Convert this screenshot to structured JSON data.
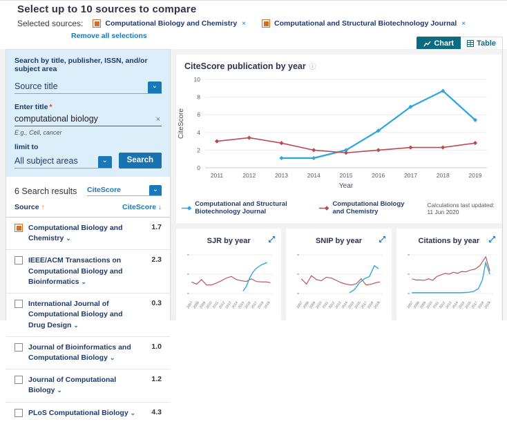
{
  "header": {
    "title": "Select up to 10 sources to compare",
    "selected_sources_label": "Selected sources:",
    "chips": [
      {
        "label": "Computational Biology and Chemistry",
        "close": "×"
      },
      {
        "label": "Computational and Structural Biotechnology Journal",
        "close": "×"
      }
    ],
    "remove_all_label": "Remove all selections"
  },
  "view_toggle": {
    "chart_label": "Chart",
    "table_label": "Table"
  },
  "sidebar": {
    "search_heading": "Search by title, publisher, ISSN, and/or subject area",
    "source_type_value": "Source title",
    "title_field_label": "Enter title",
    "required_mark": "*",
    "title_field_value": "computational biology",
    "clear_icon": "×",
    "title_field_hint": "E.g., Cell, cancer",
    "limit_label": "limit to",
    "subject_value": "All subject areas",
    "search_button_label": "Search",
    "results_count": "6 Search results",
    "sort_value": "CiteScore",
    "col_source": "Source",
    "col_source_arrow": "↑",
    "col_citescore": "CiteScore",
    "col_citescore_arrow": "↓",
    "results": [
      {
        "label": "Computational Biology and Chemistry",
        "value": "1.7",
        "checked": true
      },
      {
        "label": "IEEE/ACM Transactions on Computational Biology and Bioinformatics",
        "value": "2.3",
        "checked": false
      },
      {
        "label": "International Journal of Computational Biology and Drug Design",
        "value": "0.3",
        "checked": false
      },
      {
        "label": "Journal of Bioinformatics and Computational Biology",
        "value": "1.0",
        "checked": false
      },
      {
        "label": "Journal of Computational Biology",
        "value": "1.2",
        "checked": false
      },
      {
        "label": "PLoS Computational Biology",
        "value": "4.3",
        "checked": false
      }
    ]
  },
  "main": {
    "chart_title": "CiteScore publication by year",
    "info_icon": "ⓘ",
    "footnote": "Calculations last updated: 11 Jun 2020"
  },
  "colors": {
    "line_blue": "#2fa8d8",
    "line_red": "#b84a50",
    "link_blue": "#1878b8",
    "teal": "#0d6b80",
    "button_blue": "#1873b0",
    "orange_checkbox": "#d96c1e",
    "panel_blue": "#dceef9",
    "navy_text": "#1f3a68"
  },
  "chart_data": [
    {
      "id": "citescore_by_year",
      "type": "line",
      "title": "CiteScore publication by year",
      "xlabel": "Year",
      "ylabel": "CiteScore",
      "ylim": [
        0,
        10
      ],
      "yticks": [
        0,
        2,
        4,
        6,
        8,
        10
      ],
      "categories": [
        "2011",
        "2012",
        "2013",
        "2014",
        "2015",
        "2016",
        "2017",
        "2018",
        "2019"
      ],
      "grid": true,
      "legend_position": "bottom",
      "series": [
        {
          "name": "Computational and Structural Biotechnology Journal",
          "color": "#2fa8d8",
          "values": [
            null,
            null,
            1.1,
            1.1,
            2.0,
            4.2,
            6.9,
            8.7,
            5.4
          ]
        },
        {
          "name": "Computational Biology and Chemistry",
          "color": "#b84a50",
          "values": [
            3.0,
            3.4,
            2.8,
            2.0,
            1.7,
            2.0,
            2.3,
            2.3,
            2.8
          ]
        }
      ],
      "footnote": "Calculations last updated: 11 Jun 2020"
    },
    {
      "id": "sjr_by_year",
      "type": "line",
      "title": "SJR by year",
      "categories": [
        "2007",
        "2008",
        "2009",
        "2010",
        "2011",
        "2012",
        "2013",
        "2014",
        "2015",
        "2016",
        "2017",
        "2018",
        "2019"
      ],
      "series": [
        {
          "name": "Computational Biology and Chemistry",
          "color": "#b84a50",
          "points": [
            [
              0.02,
              0.3
            ],
            [
              0.08,
              0.24
            ],
            [
              0.14,
              0.36
            ],
            [
              0.2,
              0.22
            ],
            [
              0.26,
              0.22
            ],
            [
              0.32,
              0.27
            ],
            [
              0.38,
              0.33
            ],
            [
              0.44,
              0.4
            ],
            [
              0.5,
              0.44
            ],
            [
              0.56,
              0.36
            ],
            [
              0.62,
              0.33
            ],
            [
              0.68,
              0.31
            ],
            [
              0.74,
              0.38
            ],
            [
              0.8,
              0.31
            ],
            [
              0.86,
              0.3
            ],
            [
              0.92,
              0.3
            ],
            [
              0.97,
              0.28
            ]
          ]
        },
        {
          "name": "Computational and Structural Biotechnology Journal",
          "color": "#2fa8d8",
          "points": [
            [
              0.64,
              0.06
            ],
            [
              0.68,
              0.18
            ],
            [
              0.72,
              0.4
            ],
            [
              0.76,
              0.55
            ],
            [
              0.8,
              0.65
            ],
            [
              0.86,
              0.74
            ],
            [
              0.93,
              0.8
            ]
          ]
        }
      ]
    },
    {
      "id": "snip_by_year",
      "type": "line",
      "title": "SNIP by year",
      "categories": [
        "2007",
        "2008",
        "2009",
        "2010",
        "2011",
        "2012",
        "2013",
        "2014",
        "2015",
        "2016",
        "2017",
        "2018",
        "2019"
      ],
      "series": [
        {
          "name": "Computational Biology and Chemistry",
          "color": "#b84a50",
          "points": [
            [
              0.02,
              0.38
            ],
            [
              0.08,
              0.24
            ],
            [
              0.14,
              0.46
            ],
            [
              0.2,
              0.36
            ],
            [
              0.26,
              0.33
            ],
            [
              0.32,
              0.42
            ],
            [
              0.38,
              0.4
            ],
            [
              0.44,
              0.34
            ],
            [
              0.5,
              0.28
            ],
            [
              0.56,
              0.24
            ],
            [
              0.62,
              0.22
            ],
            [
              0.68,
              0.25
            ],
            [
              0.74,
              0.38
            ],
            [
              0.8,
              0.22
            ],
            [
              0.86,
              0.24
            ],
            [
              0.92,
              0.28
            ],
            [
              0.97,
              0.3
            ]
          ]
        },
        {
          "name": "Computational and Structural Biotechnology Journal",
          "color": "#2fa8d8",
          "points": [
            [
              0.6,
              0.02
            ],
            [
              0.66,
              0.1
            ],
            [
              0.72,
              0.28
            ],
            [
              0.78,
              0.38
            ],
            [
              0.84,
              0.44
            ],
            [
              0.9,
              0.72
            ],
            [
              0.95,
              0.64
            ]
          ]
        }
      ]
    },
    {
      "id": "citations_by_year",
      "type": "line",
      "title": "Citations by year",
      "categories": [
        "2007",
        "2008",
        "2009",
        "2010",
        "2011",
        "2012",
        "2013",
        "2014",
        "2015",
        "2016",
        "2017",
        "2018",
        "2019"
      ],
      "series": [
        {
          "name": "Computational Biology and Chemistry",
          "color": "#b84a50",
          "points": [
            [
              0.02,
              0.38
            ],
            [
              0.07,
              0.35
            ],
            [
              0.12,
              0.35
            ],
            [
              0.17,
              0.34
            ],
            [
              0.22,
              0.38
            ],
            [
              0.27,
              0.34
            ],
            [
              0.32,
              0.44
            ],
            [
              0.37,
              0.48
            ],
            [
              0.42,
              0.52
            ],
            [
              0.47,
              0.5
            ],
            [
              0.52,
              0.55
            ],
            [
              0.57,
              0.52
            ],
            [
              0.62,
              0.57
            ],
            [
              0.67,
              0.56
            ],
            [
              0.72,
              0.6
            ],
            [
              0.78,
              0.63
            ],
            [
              0.84,
              0.72
            ],
            [
              0.91,
              0.95
            ],
            [
              0.96,
              0.58
            ]
          ]
        },
        {
          "name": "Computational and Structural Biotechnology Journal",
          "color": "#2fa8d8",
          "points": [
            [
              0.02,
              0.02
            ],
            [
              0.1,
              0.02
            ],
            [
              0.2,
              0.02
            ],
            [
              0.3,
              0.02
            ],
            [
              0.4,
              0.02
            ],
            [
              0.5,
              0.02
            ],
            [
              0.6,
              0.02
            ],
            [
              0.7,
              0.03
            ],
            [
              0.76,
              0.05
            ],
            [
              0.82,
              0.12
            ],
            [
              0.87,
              0.35
            ],
            [
              0.91,
              0.8
            ],
            [
              0.96,
              0.5
            ]
          ]
        }
      ]
    }
  ]
}
